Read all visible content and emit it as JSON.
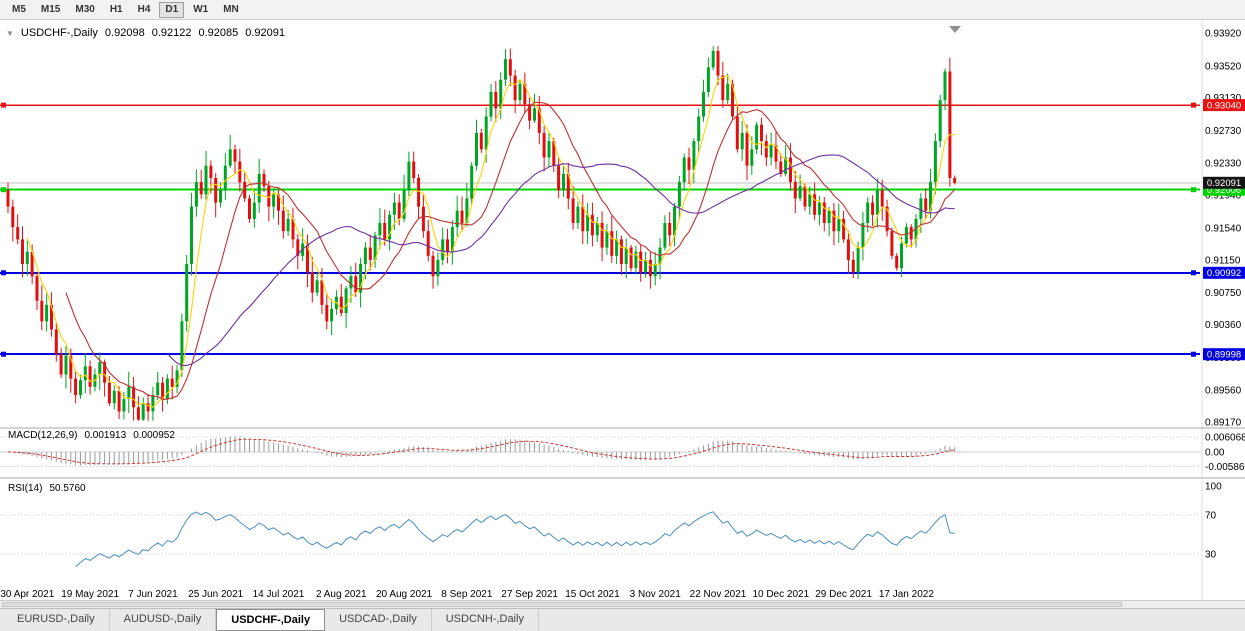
{
  "toolbar": {
    "timeframes": [
      {
        "label": "M5",
        "active": false
      },
      {
        "label": "M15",
        "active": false
      },
      {
        "label": "M30",
        "active": false
      },
      {
        "label": "H1",
        "active": false
      },
      {
        "label": "H4",
        "active": false
      },
      {
        "label": "D1",
        "active": true
      },
      {
        "label": "W1",
        "active": false
      },
      {
        "label": "MN",
        "active": false
      }
    ]
  },
  "chart_header": {
    "collapse_icon": "▼",
    "symbol_label": "USDCHF-,Daily",
    "open": "0.92098",
    "high": "0.92122",
    "low": "0.92085",
    "close": "0.92091"
  },
  "price_axis": {
    "ticks": [
      "0.93920",
      "0.93520",
      "0.93130",
      "0.92730",
      "0.92330",
      "0.91940",
      "0.91540",
      "0.91150",
      "0.90750",
      "0.90360",
      "0.89960",
      "0.89560",
      "0.89170"
    ]
  },
  "levels": [
    {
      "label": "0.93040",
      "value": 0.9304,
      "color": "#e81212",
      "width": 1.5
    },
    {
      "label": "0.92006",
      "value": 0.92006,
      "color": "#00d400",
      "width": 2
    },
    {
      "label": "0.90992",
      "value": 0.90992,
      "color": "#0000e0",
      "width": 2
    },
    {
      "label": "0.89998",
      "value": 0.89998,
      "color": "#0000e0",
      "width": 2
    }
  ],
  "current_price": {
    "label": "0.92091",
    "value": 0.92091,
    "line_color": "#c0c0c0",
    "badge_bg": "#151515",
    "badge_text": "#ffffff"
  },
  "chart_data": {
    "type": "candlestick",
    "symbol": "USDCHF-",
    "timeframe": "Daily",
    "y_range": [
      0.8917,
      0.9392
    ],
    "first_open": 0.92,
    "bull_color": "#00a524",
    "bear_color": "#e01010",
    "closes": [
      0.918,
      0.9155,
      0.914,
      0.911,
      0.9125,
      0.9095,
      0.9065,
      0.904,
      0.906,
      0.903,
      0.9,
      0.8975,
      0.8998,
      0.897,
      0.895,
      0.8968,
      0.8985,
      0.896,
      0.8975,
      0.899,
      0.8965,
      0.894,
      0.8955,
      0.893,
      0.8945,
      0.896,
      0.8935,
      0.892,
      0.894,
      0.893,
      0.895,
      0.8965,
      0.8945,
      0.897,
      0.896,
      0.898,
      0.904,
      0.911,
      0.918,
      0.921,
      0.9195,
      0.923,
      0.9215,
      0.9185,
      0.92,
      0.923,
      0.925,
      0.9235,
      0.921,
      0.919,
      0.9165,
      0.9185,
      0.922,
      0.9205,
      0.918,
      0.9195,
      0.9175,
      0.915,
      0.9165,
      0.914,
      0.912,
      0.9135,
      0.91,
      0.9075,
      0.909,
      0.906,
      0.904,
      0.9055,
      0.907,
      0.905,
      0.908,
      0.9095,
      0.9075,
      0.911,
      0.913,
      0.9115,
      0.9145,
      0.916,
      0.914,
      0.917,
      0.9185,
      0.9165,
      0.92,
      0.9235,
      0.9215,
      0.918,
      0.915,
      0.912,
      0.9095,
      0.9115,
      0.914,
      0.9125,
      0.9155,
      0.9175,
      0.916,
      0.919,
      0.923,
      0.927,
      0.925,
      0.929,
      0.932,
      0.93,
      0.9335,
      0.936,
      0.934,
      0.931,
      0.933,
      0.9305,
      0.9285,
      0.93,
      0.927,
      0.924,
      0.926,
      0.923,
      0.92,
      0.922,
      0.919,
      0.916,
      0.918,
      0.915,
      0.917,
      0.9145,
      0.916,
      0.913,
      0.915,
      0.912,
      0.914,
      0.911,
      0.913,
      0.9105,
      0.9125,
      0.91,
      0.9115,
      0.9095,
      0.911,
      0.913,
      0.916,
      0.9145,
      0.918,
      0.921,
      0.924,
      0.9225,
      0.926,
      0.929,
      0.932,
      0.935,
      0.937,
      0.934,
      0.931,
      0.933,
      0.929,
      0.925,
      0.927,
      0.923,
      0.925,
      0.928,
      0.926,
      0.924,
      0.9255,
      0.9235,
      0.922,
      0.924,
      0.921,
      0.919,
      0.9205,
      0.918,
      0.9195,
      0.917,
      0.9185,
      0.916,
      0.9175,
      0.915,
      0.9165,
      0.914,
      0.9115,
      0.91,
      0.913,
      0.916,
      0.9185,
      0.917,
      0.92,
      0.918,
      0.915,
      0.912,
      0.9105,
      0.9135,
      0.9155,
      0.914,
      0.9165,
      0.919,
      0.9175,
      0.921,
      0.926,
      0.931,
      0.9345,
      0.9215,
      0.92091
    ],
    "x_labels": [
      {
        "i": 4,
        "t": "30 Apr 2021"
      },
      {
        "i": 17,
        "t": "19 May 2021"
      },
      {
        "i": 30,
        "t": "7 Jun 2021"
      },
      {
        "i": 43,
        "t": "25 Jun 2021"
      },
      {
        "i": 56,
        "t": "14 Jul 2021"
      },
      {
        "i": 69,
        "t": "2 Aug 2021"
      },
      {
        "i": 82,
        "t": "20 Aug 2021"
      },
      {
        "i": 95,
        "t": "8 Sep 2021"
      },
      {
        "i": 108,
        "t": "27 Sep 2021"
      },
      {
        "i": 121,
        "t": "15 Oct 2021"
      },
      {
        "i": 134,
        "t": "3 Nov 2021"
      },
      {
        "i": 147,
        "t": "22 Nov 2021"
      },
      {
        "i": 160,
        "t": "10 Dec 2021"
      },
      {
        "i": 173,
        "t": "29 Dec 2021"
      },
      {
        "i": 186,
        "t": "17 Jan 2022"
      }
    ],
    "moving_averages": [
      {
        "period": 5,
        "color": "#ffd400"
      },
      {
        "period": 13,
        "color": "#c03030"
      },
      {
        "period": 34,
        "color": "#7030a0"
      }
    ]
  },
  "macd_panel": {
    "title": "MACD(12,26,9)",
    "value_main": "0.001913",
    "value_signal": "0.000952",
    "params": {
      "fast": 12,
      "slow": 26,
      "signal": 9
    },
    "axis_ticks": [
      "0.006068",
      "0.00",
      "-0.005869"
    ],
    "range": [
      -0.005869,
      0.006068
    ],
    "hist_color": "#9a9a9a",
    "signal_color": "#d23030"
  },
  "rsi_panel": {
    "title": "RSI(14)",
    "value": "50.5760",
    "period": 14,
    "axis_ticks": [
      "100",
      "70",
      "30"
    ],
    "levels": [
      70,
      30
    ],
    "line_color": "#4a8fc2",
    "range": [
      0,
      100
    ]
  },
  "tabs": [
    {
      "label": "EURUSD-,Daily",
      "active": false
    },
    {
      "label": "AUDUSD-,Daily",
      "active": false
    },
    {
      "label": "USDCHF-,Daily",
      "active": true
    },
    {
      "label": "USDCAD-,Daily",
      "active": false
    },
    {
      "label": "USDCNH-,Daily",
      "active": false
    }
  ],
  "misc": {
    "shift_marker_icon": "triangle-down"
  }
}
